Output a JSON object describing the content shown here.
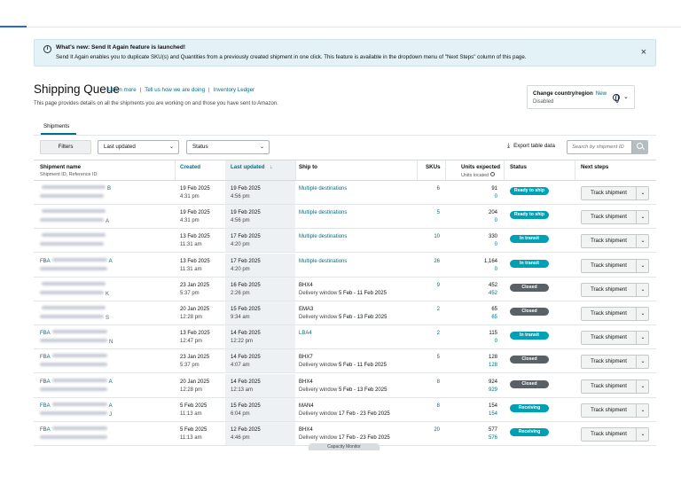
{
  "banner": {
    "title": "What's new: Send It Again feature is launched!",
    "text": "Send It Again enables you to duplicate SKU(s) and Quantities from a previously created shipment in one click. This feature is available in the dropdown menu of \"Next Steps\" column of this page.",
    "close": "×"
  },
  "page": {
    "title": "Shipping Queue",
    "links": [
      "Learn more",
      "Tell us how we are doing",
      "Inventory Ledger"
    ],
    "separator": "|",
    "subtitle": "This page provides details on all the shipments you are working on and those you have sent to Amazon."
  },
  "country": {
    "label": "Change country/region",
    "badge": "New",
    "value": "Disabled"
  },
  "tabs": [
    "Shipments"
  ],
  "toolbar": {
    "filters": "Filters",
    "sort_select": "Last updated",
    "status_select": "Status",
    "export": "Export table data",
    "search_placeholder": "Search by shipment ID"
  },
  "columns": {
    "name": "Shipment name",
    "name_sub": "Shipment ID, Reference ID",
    "created": "Created",
    "updated": "Last updated",
    "ship_to": "Ship to",
    "skus": "SKUs",
    "units": "Units expected",
    "units_sub": "Units located",
    "status": "Status",
    "next": "Next steps"
  },
  "status_colors": {
    "Ready to ship": "#00a0b4",
    "In transit": "#00a0b4",
    "Closed": "#5a6166",
    "Receiving": "#00a0b4"
  },
  "rows": [
    {
      "id_prefix": "",
      "id_suffix": "B",
      "ref_suffix": "",
      "created_date": "19 Feb 2025",
      "created_time": "4:31 pm",
      "updated_date": "19 Feb 2025",
      "updated_time": "4:56 pm",
      "ship_to": "Multiple destinations",
      "window_label": "",
      "window_value": "",
      "skus": "6",
      "units_expected": "91",
      "units_located": "0",
      "status": "Ready to ship"
    },
    {
      "id_prefix": "",
      "id_suffix": "",
      "ref_suffix": "A",
      "created_date": "19 Feb 2025",
      "created_time": "4:31 pm",
      "updated_date": "19 Feb 2025",
      "updated_time": "4:56 pm",
      "ship_to": "Multiple destinations",
      "window_label": "",
      "window_value": "",
      "skus": "5",
      "units_expected": "204",
      "units_located": "0",
      "status": "Ready to ship"
    },
    {
      "id_prefix": "",
      "id_suffix": "",
      "ref_suffix": "",
      "created_date": "13 Feb 2025",
      "created_time": "11:31 am",
      "updated_date": "17 Feb 2025",
      "updated_time": "4:20 pm",
      "ship_to": "Multiple destinations",
      "window_label": "",
      "window_value": "",
      "skus": "10",
      "units_expected": "330",
      "units_located": "0",
      "status": "In transit"
    },
    {
      "id_prefix": "FBA",
      "id_suffix": "A",
      "ref_suffix": "",
      "created_date": "13 Feb 2025",
      "created_time": "11:31 am",
      "updated_date": "17 Feb 2025",
      "updated_time": "4:20 pm",
      "ship_to": "Multiple destinations",
      "window_label": "",
      "window_value": "",
      "skus": "26",
      "units_expected": "1,164",
      "units_located": "0",
      "status": "In transit"
    },
    {
      "id_prefix": "",
      "id_suffix": "",
      "ref_suffix": "K",
      "created_date": "23 Jan 2025",
      "created_time": "5:37 pm",
      "updated_date": "16 Feb 2025",
      "updated_time": "2:26 pm",
      "ship_to": "BHX4",
      "window_label": "Delivery window",
      "window_value": "5 Feb - 11 Feb 2025",
      "skus": "9",
      "units_expected": "452",
      "units_located": "452",
      "status": "Closed"
    },
    {
      "id_prefix": "",
      "id_suffix": "",
      "ref_suffix": "S",
      "created_date": "20 Jan 2025",
      "created_time": "12:28 pm",
      "updated_date": "15 Feb 2025",
      "updated_time": "9:34 am",
      "ship_to": "EMA3",
      "window_label": "Delivery window",
      "window_value": "5 Feb - 13 Feb 2025",
      "skus": "2",
      "units_expected": "65",
      "units_located": "65",
      "status": "Closed"
    },
    {
      "id_prefix": "FBA",
      "id_suffix": "",
      "ref_suffix": "N",
      "created_date": "13 Feb 2025",
      "created_time": "12:47 pm",
      "updated_date": "14 Feb 2025",
      "updated_time": "12:22 pm",
      "ship_to": "LBA4",
      "window_label": "",
      "window_value": "",
      "skus": "2",
      "units_expected": "115",
      "units_located": "0",
      "status": "In transit"
    },
    {
      "id_prefix": "FBA",
      "id_suffix": "",
      "ref_suffix": "",
      "created_date": "23 Jan 2025",
      "created_time": "5:37 pm",
      "updated_date": "14 Feb 2025",
      "updated_time": "4:07 am",
      "ship_to": "BHX7",
      "window_label": "Delivery window",
      "window_value": "5 Feb - 11 Feb 2025",
      "skus": "5",
      "units_expected": "128",
      "units_located": "128",
      "status": "Closed"
    },
    {
      "id_prefix": "FBA",
      "id_suffix": "A",
      "ref_suffix": "",
      "created_date": "20 Jan 2025",
      "created_time": "12:28 pm",
      "updated_date": "14 Feb 2025",
      "updated_time": "12:13 am",
      "ship_to": "BHX4",
      "window_label": "Delivery window",
      "window_value": "5 Feb - 13 Feb 2025",
      "skus": "8",
      "units_expected": "924",
      "units_located": "929",
      "status": "Closed"
    },
    {
      "id_prefix": "FBA",
      "id_suffix": "A",
      "ref_suffix": "J",
      "created_date": "5 Feb 2025",
      "created_time": "11:13 am",
      "updated_date": "15 Feb 2025",
      "updated_time": "6:04 pm",
      "ship_to": "MAN4",
      "window_label": "Delivery window",
      "window_value": "17 Feb - 23 Feb 2025",
      "skus": "8",
      "units_expected": "154",
      "units_located": "154",
      "status": "Receiving"
    },
    {
      "id_prefix": "FBA",
      "id_suffix": "",
      "ref_suffix": "",
      "created_date": "5 Feb 2025",
      "created_time": "11:13 am",
      "updated_date": "12 Feb 2025",
      "updated_time": "4:46 pm",
      "ship_to": "BHX4",
      "window_label": "Delivery window",
      "window_value": "17 Feb - 23 Feb 2025",
      "skus": "20",
      "units_expected": "577",
      "units_located": "576",
      "status": "Receiving"
    }
  ],
  "track_label": "Track shipment",
  "capacity_label": "Capacity Monitor"
}
